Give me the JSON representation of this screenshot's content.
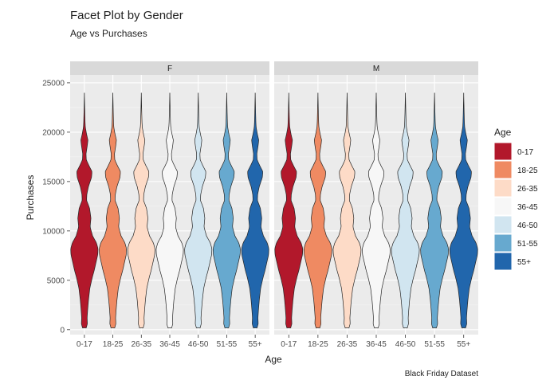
{
  "chart_data": {
    "type": "violin",
    "title": "Facet Plot by Gender",
    "subtitle": "Age vs Purchases",
    "caption": "Black Friday Dataset",
    "xlabel": "Age",
    "ylabel": "Purchases",
    "ylim": [
      -500,
      25800
    ],
    "yticks": [
      0,
      5000,
      10000,
      15000,
      20000,
      25000
    ],
    "y_tick_labels": [
      "0",
      "5000",
      "10000",
      "15000",
      "20000",
      "25000"
    ],
    "grid": true,
    "legend": {
      "title": "Age",
      "position": "right",
      "entries": [
        "0-17",
        "18-25",
        "26-35",
        "36-45",
        "46-50",
        "51-55",
        "55+"
      ]
    },
    "categories": [
      "0-17",
      "18-25",
      "26-35",
      "36-45",
      "46-50",
      "51-55",
      "55+"
    ],
    "colors": [
      "#b2182b",
      "#ef8a62",
      "#fddbc7",
      "#f7f7f7",
      "#d1e5f0",
      "#67a9cf",
      "#2166ac"
    ],
    "facets": [
      {
        "label": "F"
      },
      {
        "label": "M"
      }
    ],
    "y_range": [
      185,
      23961
    ],
    "density_profile": [
      [
        0,
        0.1
      ],
      [
        600,
        0.22
      ],
      [
        1200,
        0.2
      ],
      [
        2000,
        0.24
      ],
      [
        3000,
        0.3
      ],
      [
        4200,
        0.4
      ],
      [
        5300,
        0.58
      ],
      [
        6000,
        0.72
      ],
      [
        6800,
        0.85
      ],
      [
        7600,
        0.98
      ],
      [
        8200,
        1.0
      ],
      [
        8800,
        0.88
      ],
      [
        9500,
        0.6
      ],
      [
        10400,
        0.42
      ],
      [
        11300,
        0.48
      ],
      [
        12300,
        0.38
      ],
      [
        13100,
        0.16
      ],
      [
        13700,
        0.18
      ],
      [
        14500,
        0.3
      ],
      [
        15400,
        0.52
      ],
      [
        16000,
        0.56
      ],
      [
        16600,
        0.34
      ],
      [
        17200,
        0.14
      ],
      [
        17800,
        0.12
      ],
      [
        18700,
        0.22
      ],
      [
        19200,
        0.26
      ],
      [
        19800,
        0.16
      ],
      [
        20500,
        0.07
      ],
      [
        21000,
        0.05
      ],
      [
        22000,
        0.03
      ],
      [
        23000,
        0.015
      ],
      [
        24000,
        0
      ]
    ]
  }
}
